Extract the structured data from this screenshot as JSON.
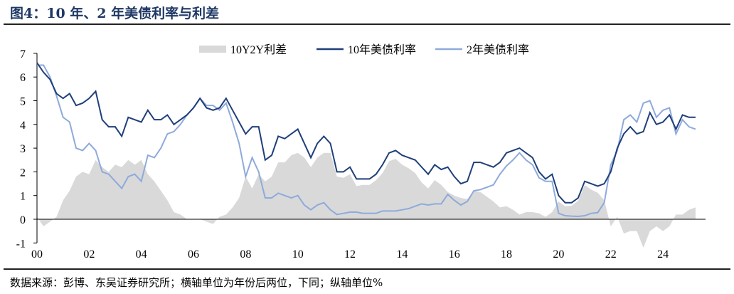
{
  "title": "图4：10 年、2 年美债利率与利差",
  "source": "数据来源：彭博、东吴证券研究所；横轴单位为年份后两位，下同；纵轴单位%",
  "chart_data": {
    "type": "line",
    "title": "图4：10 年、2 年美债利率与利差",
    "xlabel": "",
    "ylabel": "",
    "ylim": [
      -1,
      7
    ],
    "yticks": [
      "-1",
      "0",
      "1",
      "2",
      "3",
      "4",
      "5",
      "6",
      "7"
    ],
    "xticks": [
      "00",
      "02",
      "04",
      "06",
      "08",
      "10",
      "12",
      "14",
      "16",
      "18",
      "20",
      "22",
      "24"
    ],
    "legend": [
      "10Y2Y利差",
      "10年美债利率",
      "2年美债利率"
    ],
    "legend_position": "top",
    "colors": {
      "spread": "#d9d9d9",
      "y10": "#1f3f7a",
      "y2": "#8eaadb"
    },
    "x_start": 2000,
    "x_step": 0.25,
    "series": [
      {
        "name": "10年美债利率",
        "values": [
          6.6,
          6.2,
          5.9,
          5.3,
          5.1,
          5.3,
          4.8,
          4.9,
          5.1,
          5.4,
          4.2,
          3.9,
          3.9,
          3.5,
          4.3,
          4.2,
          4.1,
          4.6,
          4.2,
          4.2,
          4.4,
          4.0,
          4.2,
          4.4,
          4.7,
          5.1,
          4.7,
          4.6,
          4.7,
          5.1,
          4.6,
          4.1,
          3.6,
          3.9,
          3.9,
          2.5,
          2.7,
          3.5,
          3.4,
          3.6,
          3.8,
          3.2,
          2.6,
          3.2,
          3.5,
          3.2,
          2.0,
          2.0,
          2.2,
          1.7,
          1.7,
          1.7,
          1.9,
          2.3,
          2.8,
          2.9,
          2.7,
          2.6,
          2.5,
          2.2,
          1.9,
          2.3,
          2.1,
          2.2,
          1.8,
          1.5,
          1.6,
          2.4,
          2.4,
          2.3,
          2.2,
          2.4,
          2.8,
          2.9,
          3.0,
          2.8,
          2.6,
          2.0,
          1.7,
          1.9,
          1.0,
          0.7,
          0.7,
          0.9,
          1.6,
          1.5,
          1.4,
          1.5,
          2.0,
          3.0,
          3.6,
          3.9,
          3.6,
          3.7,
          4.5,
          4.0,
          4.1,
          4.4,
          3.8,
          4.4,
          4.3,
          4.3
        ]
      },
      {
        "name": "2年美债利率",
        "values": [
          6.5,
          6.5,
          6.0,
          5.2,
          4.3,
          4.1,
          3.0,
          2.9,
          3.2,
          2.9,
          2.0,
          1.9,
          1.6,
          1.3,
          1.8,
          1.9,
          1.6,
          2.7,
          2.6,
          3.0,
          3.6,
          3.7,
          4.0,
          4.4,
          4.7,
          5.1,
          4.8,
          4.8,
          4.6,
          4.9,
          4.1,
          3.2,
          1.8,
          2.6,
          2.0,
          0.9,
          0.9,
          1.1,
          1.0,
          0.9,
          1.0,
          0.6,
          0.4,
          0.6,
          0.7,
          0.4,
          0.2,
          0.25,
          0.3,
          0.3,
          0.25,
          0.25,
          0.25,
          0.35,
          0.35,
          0.35,
          0.4,
          0.45,
          0.55,
          0.65,
          0.6,
          0.65,
          0.65,
          1.05,
          0.8,
          0.6,
          0.75,
          1.2,
          1.25,
          1.35,
          1.45,
          1.9,
          2.25,
          2.5,
          2.8,
          2.5,
          2.3,
          1.75,
          1.6,
          1.6,
          0.25,
          0.15,
          0.13,
          0.12,
          0.15,
          0.25,
          0.28,
          0.7,
          2.3,
          2.9,
          4.2,
          4.4,
          4.1,
          4.9,
          5.0,
          4.3,
          4.6,
          4.7,
          3.6,
          4.2,
          3.9,
          3.8
        ]
      },
      {
        "name": "10Y2Y利差",
        "derived": "10年美债利率 - 2年美债利率"
      }
    ]
  }
}
